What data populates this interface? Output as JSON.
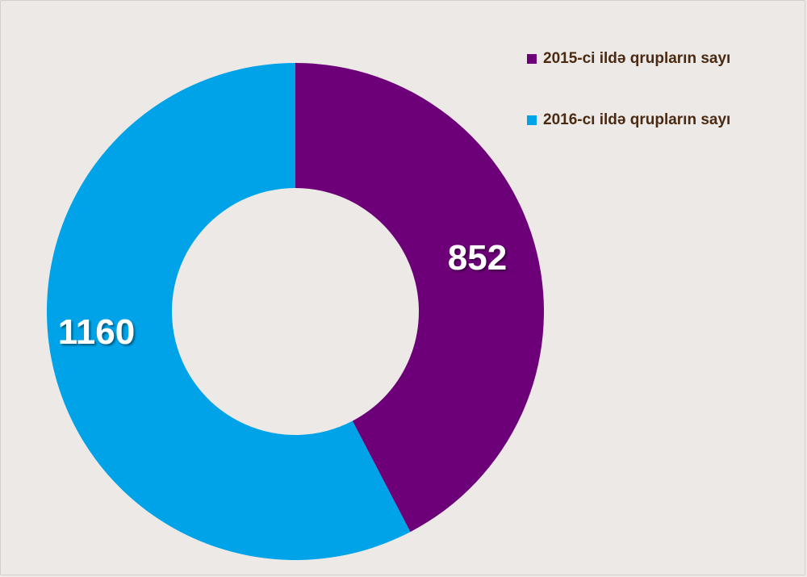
{
  "chart_data": {
    "type": "pie",
    "variant": "donut",
    "categories": [
      "2015-ci ildə qrupların sayı",
      "2016-cı ildə qrupların sayı"
    ],
    "values": [
      852,
      1160
    ],
    "colors": [
      "#6d0078",
      "#00a3e8"
    ],
    "data_labels": [
      "852",
      "1160"
    ],
    "label_color": "#ffffff",
    "legend_position": "top-right",
    "start": "top",
    "direction": "clockwise"
  },
  "legend": {
    "items": [
      {
        "label": "2015-ci ildə qrupların sayı",
        "color": "#6d0078"
      },
      {
        "label": "2016-cı ildə qrupların sayı",
        "color": "#00a3e8"
      }
    ]
  }
}
